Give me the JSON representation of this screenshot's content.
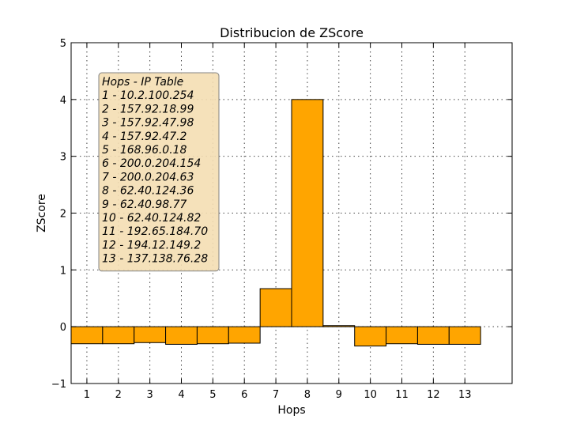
{
  "chart_data": {
    "type": "bar",
    "title": "Distribucion de ZScore",
    "xlabel": "Hops",
    "ylabel": "ZScore",
    "categories": [
      "1",
      "2",
      "3",
      "4",
      "5",
      "6",
      "7",
      "8",
      "9",
      "10",
      "11",
      "12",
      "13"
    ],
    "values": [
      -0.3,
      -0.3,
      -0.28,
      -0.31,
      -0.3,
      -0.29,
      0.67,
      4.0,
      0.02,
      -0.34,
      -0.3,
      -0.31,
      -0.31
    ],
    "ylim": [
      -1,
      5
    ],
    "yticks": [
      "−1",
      "0",
      "1",
      "2",
      "3",
      "4",
      "5"
    ],
    "xlim": [
      0.5,
      14.5
    ],
    "bar_color": "#FFA500",
    "grid": true,
    "annotation": {
      "placement": "upper-left",
      "background": "#F5DEB3",
      "lines": [
        "Hops - IP Table",
        "1 - 10.2.100.254",
        "2 - 157.92.18.99",
        "3 - 157.92.47.98",
        "4 - 157.92.47.2",
        "5 - 168.96.0.18",
        "6 - 200.0.204.154",
        "7 - 200.0.204.63",
        "8 - 62.40.124.36",
        "9 - 62.40.98.77",
        "10 - 62.40.124.82",
        "11 - 192.65.184.70",
        "12 - 194.12.149.2",
        "13 - 137.138.76.28"
      ]
    }
  }
}
